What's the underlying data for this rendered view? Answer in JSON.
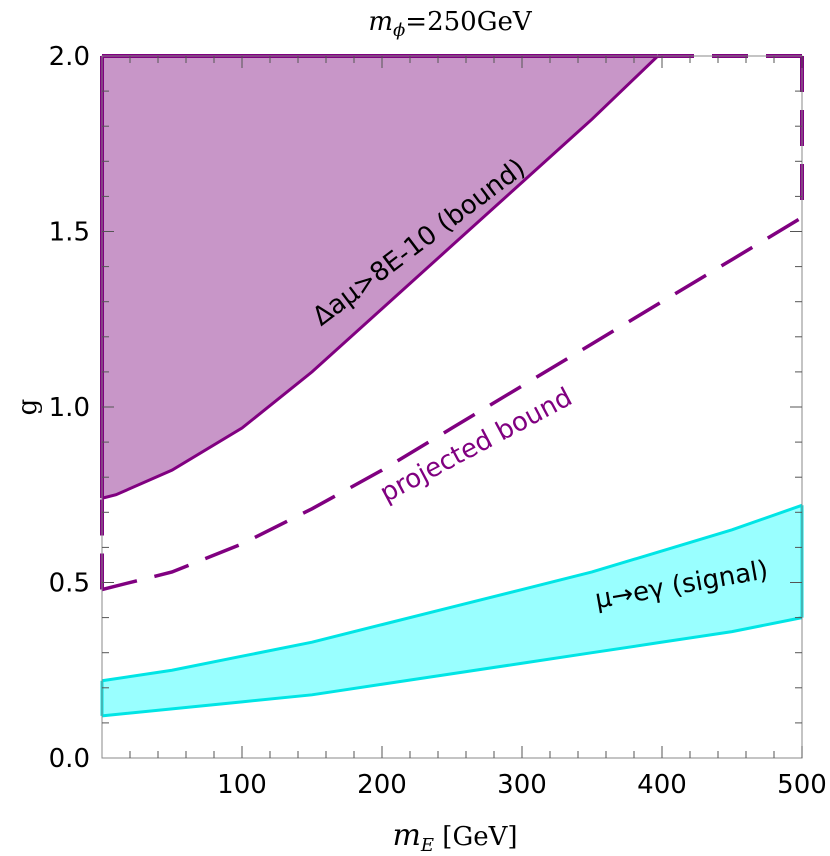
{
  "chart_data": {
    "type": "area",
    "title": "mϕ=250GeV",
    "title_parts": {
      "var": "m",
      "sub": "ϕ",
      "rest": "=250GeV"
    },
    "xlabel": "m_E [GeV]",
    "xlabel_parts": {
      "var": "m",
      "sub": "E",
      "rest": " [GeV]"
    },
    "ylabel": "g",
    "xlim": [
      0,
      500
    ],
    "ylim": [
      0,
      2.0
    ],
    "xticks": [
      100,
      200,
      300,
      400,
      500
    ],
    "yticks": [
      0.0,
      0.5,
      1.0,
      1.5,
      2.0
    ],
    "ytick_labels": [
      "0.0",
      "0.5",
      "1.0",
      "1.5",
      "2.0"
    ],
    "xtick_labels": [
      "100",
      "200",
      "300",
      "400",
      "500"
    ],
    "grid": false,
    "series": [
      {
        "name": "Δaμ>8E-10 (bound)",
        "kind": "filled-above",
        "color": "#800080",
        "fill": "#c896c8",
        "x": [
          0,
          10,
          50,
          100,
          150,
          200,
          250,
          300,
          350,
          397
        ],
        "y": [
          0.74,
          0.75,
          0.82,
          0.94,
          1.1,
          1.28,
          1.46,
          1.64,
          1.82,
          2.0
        ]
      },
      {
        "name": "projected bound",
        "kind": "dashed-line",
        "color": "#800080",
        "x": [
          0,
          50,
          100,
          150,
          200,
          250,
          300,
          350,
          400,
          450,
          500
        ],
        "y": [
          0.48,
          0.53,
          0.61,
          0.71,
          0.82,
          0.94,
          1.06,
          1.18,
          1.3,
          1.42,
          1.54
        ]
      },
      {
        "name": "μ→eγ (signal)",
        "kind": "band",
        "color": "#00e5e5",
        "fill": "#99ffff",
        "x": [
          0,
          50,
          100,
          150,
          200,
          250,
          300,
          350,
          400,
          450,
          500
        ],
        "y_upper": [
          0.22,
          0.25,
          0.29,
          0.33,
          0.38,
          0.43,
          0.48,
          0.53,
          0.59,
          0.65,
          0.72
        ],
        "y_lower": [
          0.12,
          0.14,
          0.16,
          0.18,
          0.21,
          0.24,
          0.27,
          0.3,
          0.33,
          0.36,
          0.4
        ]
      }
    ],
    "annotations": [
      {
        "text": "Δaμ>8E-10 (bound)",
        "x": 230,
        "y": 1.45,
        "color": "#000000"
      },
      {
        "text": "projected bound",
        "x": 270,
        "y": 0.87,
        "color": "#800080"
      },
      {
        "text": "μ→eγ (signal)",
        "x": 415,
        "y": 0.47,
        "color": "#000000"
      }
    ]
  }
}
